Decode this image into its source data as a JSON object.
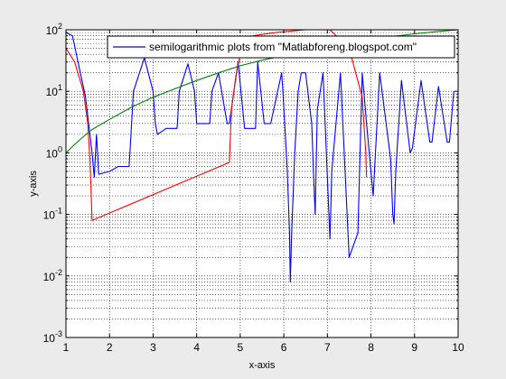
{
  "chart_data": {
    "type": "line",
    "xlabel": "x-axis",
    "ylabel": "y-axis",
    "xlim": [
      1,
      10
    ],
    "ylim": [
      0.001,
      100
    ],
    "yscale": "log",
    "grid": "dotted, major and minor",
    "legend_position": "top-right",
    "xticks": [
      "1",
      "2",
      "3",
      "4",
      "5",
      "6",
      "7",
      "8",
      "9",
      "10"
    ],
    "yticks": [
      {
        "base": "10",
        "exp": "-3"
      },
      {
        "base": "10",
        "exp": "-2"
      },
      {
        "base": "10",
        "exp": "-1"
      },
      {
        "base": "10",
        "exp": "0"
      },
      {
        "base": "10",
        "exp": "1"
      },
      {
        "base": "10",
        "exp": "2"
      }
    ],
    "legend": [
      "semilogarithmic plots from \"Matlabforeng.blogspot.com\""
    ],
    "series": [
      {
        "name": "semilogarithmic plots from \"Matlabforeng.blogspot.com\"",
        "color": "#0000ff",
        "x": [
          1.0,
          1.15,
          1.3,
          1.45,
          1.6,
          1.65,
          1.7,
          1.75,
          2.0,
          2.2,
          2.45,
          2.55,
          2.8,
          3.0,
          3.05,
          3.1,
          3.3,
          3.55,
          3.6,
          3.8,
          3.95,
          4.0,
          4.3,
          4.35,
          4.5,
          4.7,
          4.75,
          4.95,
          5.1,
          5.35,
          5.4,
          5.55,
          5.7,
          5.95,
          5.98,
          6.02,
          6.08,
          6.13,
          6.15,
          6.18,
          6.25,
          6.33,
          6.4,
          6.5,
          6.64,
          6.68,
          6.72,
          6.77,
          6.9,
          7.04,
          7.06,
          7.1,
          7.3,
          7.5,
          7.7,
          7.8,
          7.9,
          8.05,
          8.2,
          8.45,
          8.5,
          8.53,
          8.57,
          8.7,
          8.9,
          8.95,
          9.15,
          9.35,
          9.4,
          9.55,
          9.75,
          9.8,
          9.9
        ],
        "y": [
          90,
          80,
          25,
          8,
          1.0,
          0.4,
          2.0,
          0.45,
          0.5,
          0.6,
          0.6,
          10,
          35,
          10,
          3,
          2,
          2.5,
          2.5,
          10,
          28,
          10,
          3,
          3,
          10,
          20,
          3,
          3,
          30,
          2.5,
          2.5,
          30,
          3,
          3,
          20,
          10,
          3,
          0.5,
          0.05,
          0.008,
          0.05,
          1,
          10,
          20,
          20,
          3,
          0.5,
          0.1,
          5,
          20,
          0.08,
          0.04,
          0.5,
          20,
          0.02,
          0.05,
          20,
          3,
          0.2,
          20,
          0.8,
          0.1,
          0.07,
          0.5,
          15,
          1,
          1.2,
          15,
          1.5,
          1.5,
          12,
          1.5,
          1.5,
          10
        ]
      },
      {
        "name": "",
        "color": "#ff0000",
        "x": [
          1.0,
          1.2,
          1.4,
          1.5,
          1.55,
          1.58,
          1.6,
          4.75,
          4.8,
          4.9,
          5.0,
          5.3,
          5.8,
          6.5,
          7.0,
          7.5,
          7.8,
          7.88,
          7.9
        ],
        "y": [
          50,
          30,
          10,
          3,
          0.8,
          0.2,
          0.08,
          0.7,
          5,
          18,
          40,
          80,
          90,
          100,
          110,
          50,
          8,
          1,
          0.4
        ]
      },
      {
        "name": "",
        "color": "#008000",
        "x": [
          1.0,
          1.3,
          1.6,
          2.0,
          2.5,
          3.0,
          3.5,
          4.0,
          4.5,
          5.0,
          5.5,
          6.0,
          6.5,
          7.0,
          7.5,
          8.0,
          8.5,
          9.0,
          9.5,
          10.0
        ],
        "y": [
          1.0,
          1.6,
          2.4,
          3.5,
          5.5,
          8,
          11,
          15,
          20,
          26,
          32,
          38,
          46,
          54,
          62,
          70,
          78,
          86,
          93,
          100
        ]
      }
    ]
  }
}
